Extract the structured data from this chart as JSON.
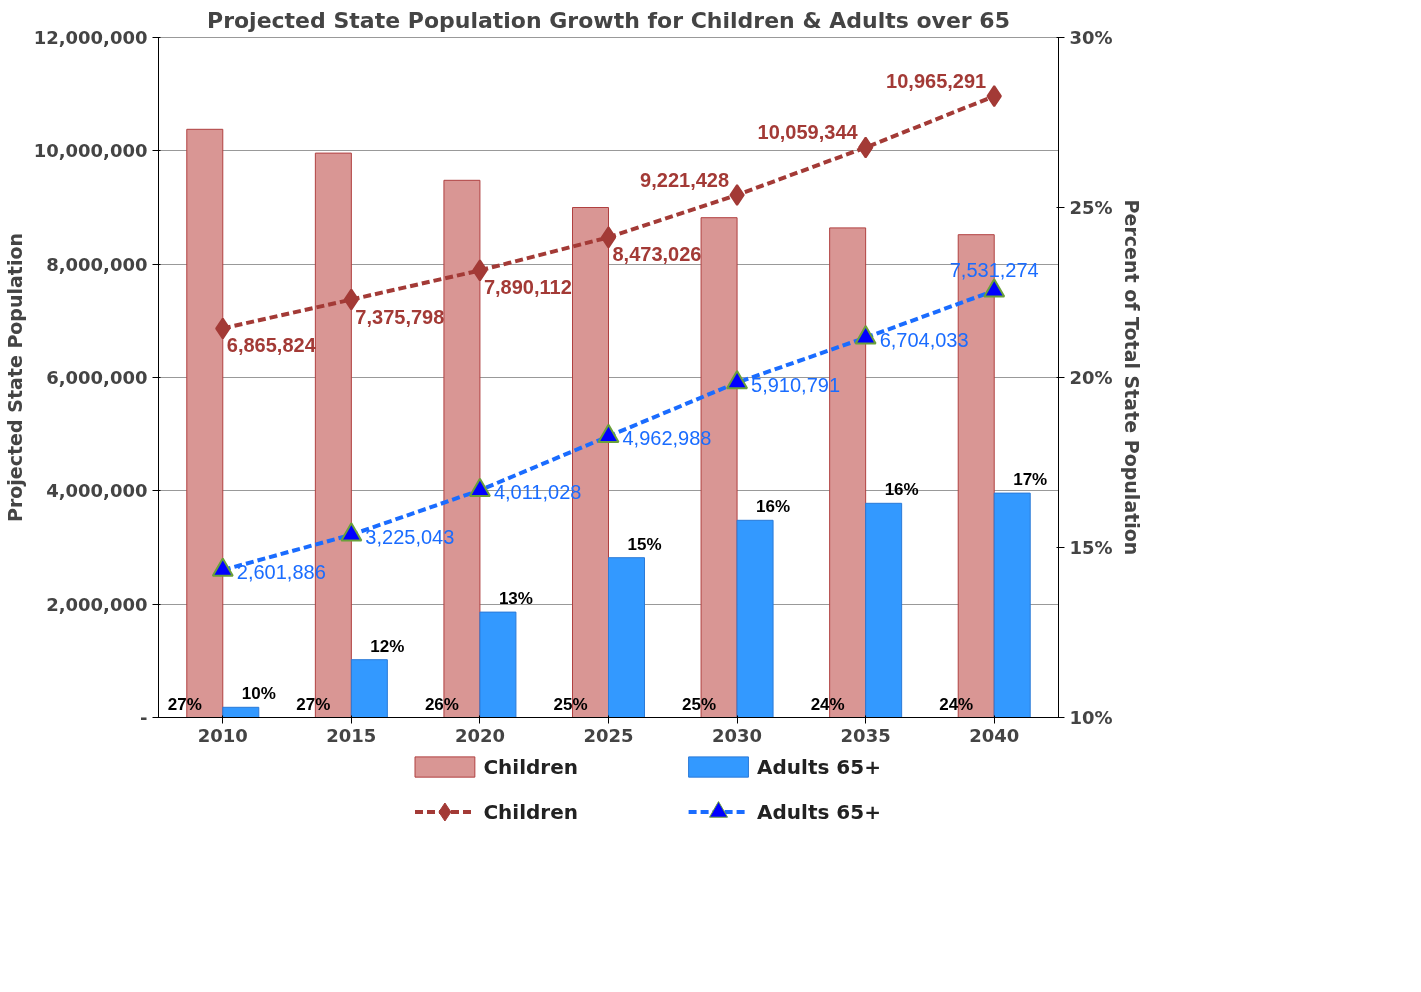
{
  "chart_data": {
    "type": "bar",
    "title": "Projected State Population Growth for Children & Adults over 65",
    "ylabel": "Projected State Population",
    "y2label": "Percent of Total State Population",
    "categories": [
      "2010",
      "2015",
      "2020",
      "2025",
      "2030",
      "2035",
      "2040"
    ],
    "series": [
      {
        "name": "Children",
        "axis": "y2",
        "color": "#d99694",
        "values": [
          27.3,
          26.6,
          25.8,
          25.0,
          24.7,
          24.4,
          24.2
        ],
        "value_labels": [
          "27%",
          "27%",
          "26%",
          "25%",
          "25%",
          "24%",
          "24%"
        ]
      },
      {
        "name": "Adults 65+",
        "axis": "y2",
        "color": "#3399ff",
        "values": [
          10.3,
          11.7,
          13.1,
          14.7,
          15.8,
          16.3,
          16.6
        ],
        "value_labels": [
          "10%",
          "12%",
          "13%",
          "15%",
          "16%",
          "16%",
          "17%"
        ]
      },
      {
        "name": "Children",
        "type": "line",
        "color": "#a33a36",
        "marker": "diamond",
        "line_style": "dashed",
        "values": [
          6865824,
          7375798,
          7890112,
          8473026,
          9221428,
          10059344,
          10965291
        ],
        "value_labels": [
          "6,865,824",
          "7,375,798",
          "7,890,112",
          "8,473,026",
          "9,221,428",
          "10,059,344",
          "10,965,291"
        ]
      },
      {
        "name": "Adults 65+",
        "type": "line",
        "color": "#1a6cff",
        "marker": "triangle",
        "line_style": "dashed",
        "values": [
          2601886,
          3225043,
          4011028,
          4962988,
          5910791,
          6704033,
          7531274
        ],
        "value_labels": [
          "2,601,886",
          "3,225,043",
          "4,011,028",
          "4,962,988",
          "5,910,791",
          "6,704,033",
          "7,531,274"
        ]
      }
    ],
    "ylim": [
      0,
      12000000
    ],
    "yticks": [
      {
        "value": 0,
        "label": "-"
      },
      {
        "value": 2000000,
        "label": "2,000,000"
      },
      {
        "value": 4000000,
        "label": "4,000,000"
      },
      {
        "value": 6000000,
        "label": "6,000,000"
      },
      {
        "value": 8000000,
        "label": "8,000,000"
      },
      {
        "value": 10000000,
        "label": "10,000,000"
      },
      {
        "value": 12000000,
        "label": "12,000,000"
      }
    ],
    "y2lim": [
      10,
      30
    ],
    "y2ticks": [
      {
        "value": 10,
        "label": "10%"
      },
      {
        "value": 15,
        "label": "15%"
      },
      {
        "value": 20,
        "label": "20%"
      },
      {
        "value": 25,
        "label": "25%"
      },
      {
        "value": 30,
        "label": "30%"
      }
    ],
    "grid": "y",
    "legend": "bottom"
  }
}
